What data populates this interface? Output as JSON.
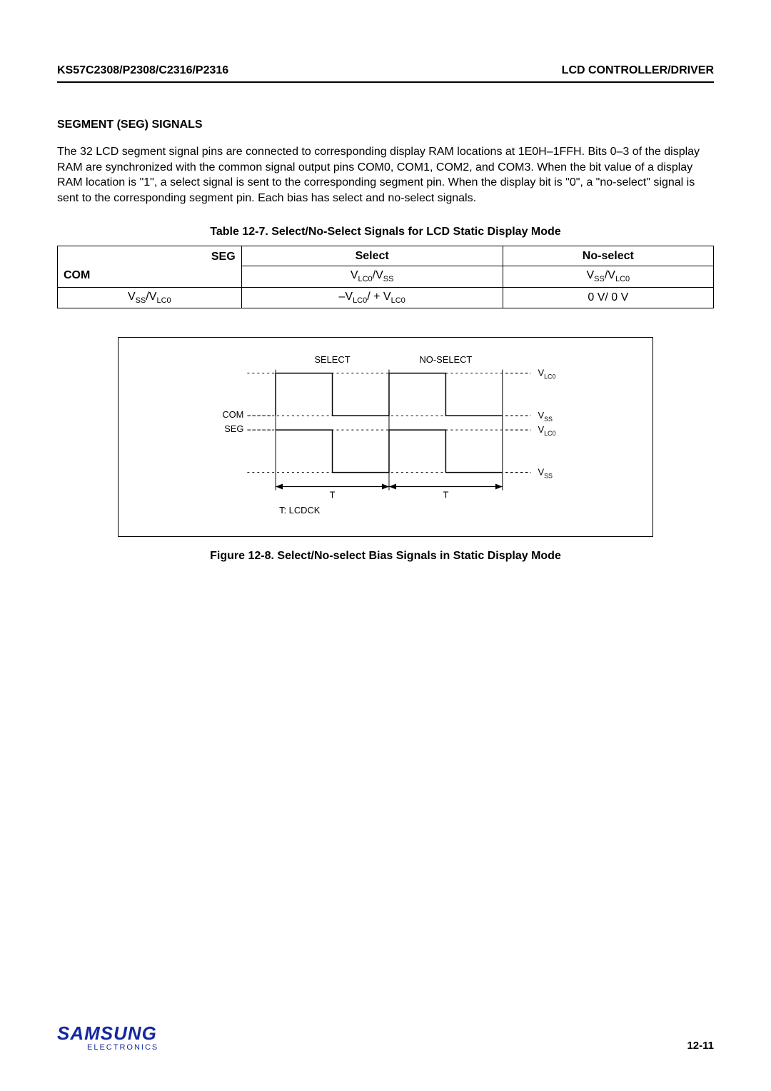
{
  "header": {
    "left": "KS57C2308/P2308/C2316/P2316",
    "right": "LCD CONTROLLER/DRIVER"
  },
  "section_title": "SEGMENT (SEG) SIGNALS",
  "body_text": "The 32 LCD segment signal pins are connected to corresponding display RAM locations at 1E0H–1FFH. Bits 0–3 of the display RAM are synchronized with the common signal output pins COM0, COM1, COM2, and COM3. When the bit value of a display RAM location is \"1\", a select signal is sent to the corresponding segment pin. When the display bit is \"0\", a \"no-select\" signal is sent to the corresponding segment pin. Each bias has select and no-select signals.",
  "table": {
    "caption": "Table 12-7. Select/No-Select Signals for LCD Static Display Mode",
    "seg_label": "SEG",
    "com_label": "COM",
    "headers": [
      "Select",
      "No-select"
    ],
    "row1": {
      "select_html": "V<sub>LC0</sub>/V<sub>SS</sub>",
      "noselect_html": "V<sub>SS</sub>/V<sub>LC0</sub>"
    },
    "row2": {
      "com_html": "V<sub>SS</sub>/V<sub>LC0</sub>",
      "select_html": "–V<sub>LC0</sub>/ + V<sub>LC0</sub>",
      "noselect_html": "0 V/ 0 V"
    }
  },
  "figure": {
    "select_label": "SELECT",
    "noselect_label": "NO-SELECT",
    "com_label": "COM",
    "seg_label": "SEG",
    "vlc0_label": "V",
    "vlc0_sub": "LC0",
    "vss_label": "V",
    "vss_sub": "SS",
    "t_label": "T",
    "lcdck_label": "T: LCDCK",
    "caption": "Figure 12-8. Select/No-select Bias Signals in Static Display Mode"
  },
  "footer": {
    "logo_main": "SAMSUNG",
    "logo_sub": "ELECTRONICS",
    "page": "12-11"
  },
  "colors": {
    "text": "#000000",
    "logo": "#1428a0",
    "bg": "#ffffff"
  }
}
